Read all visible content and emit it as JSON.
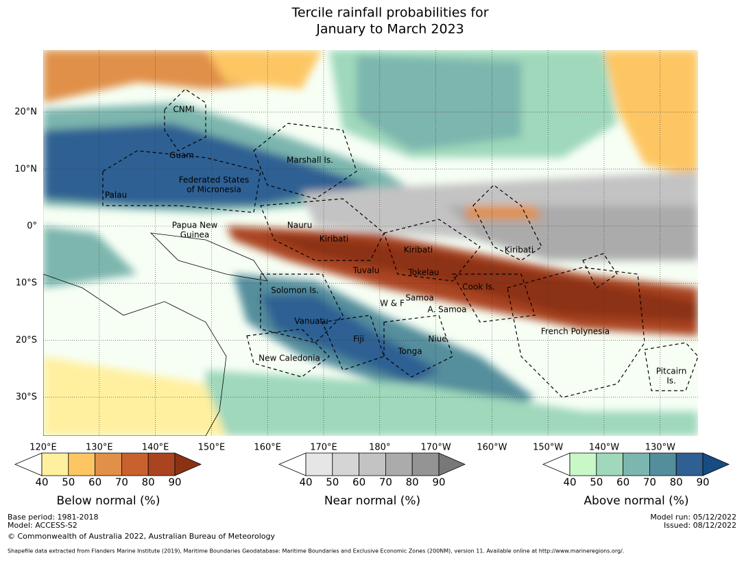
{
  "title": [
    "Tercile rainfall probabilities for",
    "January to March 2023"
  ],
  "map": {
    "lat_ticks": [
      {
        "value": 20,
        "label": "20°N"
      },
      {
        "value": 10,
        "label": "10°N"
      },
      {
        "value": 0,
        "label": "0°"
      },
      {
        "value": -10,
        "label": "10°S"
      },
      {
        "value": -20,
        "label": "20°S"
      },
      {
        "value": -30,
        "label": "30°S"
      }
    ],
    "lon_ticks": [
      {
        "value": 120,
        "label": "120°E"
      },
      {
        "value": 130,
        "label": "130°E"
      },
      {
        "value": 140,
        "label": "140°E"
      },
      {
        "value": 150,
        "label": "150°E"
      },
      {
        "value": 160,
        "label": "160°E"
      },
      {
        "value": 170,
        "label": "170°E"
      },
      {
        "value": 180,
        "label": "180°"
      },
      {
        "value": -170,
        "label": "170°W"
      },
      {
        "value": -160,
        "label": "160°W"
      },
      {
        "value": -150,
        "label": "150°W"
      },
      {
        "value": -140,
        "label": "140°W"
      },
      {
        "value": -130,
        "label": "130°W"
      }
    ],
    "regions": [
      [
        "CNMI"
      ],
      [
        "Guam"
      ],
      [
        "Marshall Is."
      ],
      [
        "Federated States",
        "of Micronesia"
      ],
      [
        "Palau"
      ],
      [
        "Papua New",
        "Guinea"
      ],
      [
        "Nauru"
      ],
      [
        "Kiribati"
      ],
      [
        "Kiribati"
      ],
      [
        "Kiribati"
      ],
      [
        "Tuvalu"
      ],
      [
        "Tokelau"
      ],
      [
        "Solomon Is."
      ],
      [
        "Cook Is."
      ],
      [
        "W & F"
      ],
      [
        "Samoa"
      ],
      [
        "A. Samoa"
      ],
      [
        "Vanuatu"
      ],
      [
        "French Polynesia"
      ],
      [
        "Fiji"
      ],
      [
        "Niue"
      ],
      [
        "Tonga"
      ],
      [
        "New Caledonia"
      ],
      [
        "Pitcairn",
        "Is."
      ]
    ]
  },
  "colorbars": [
    {
      "label": "Below normal (%)",
      "ticks": [
        40,
        50,
        60,
        70,
        80,
        90
      ],
      "colors": [
        "#fff0a0",
        "#fdc663",
        "#e09048",
        "#c9612f",
        "#aa4420"
      ],
      "over_color": "#8c3214"
    },
    {
      "label": "Near normal (%)",
      "ticks": [
        40,
        50,
        60,
        70,
        80,
        90
      ],
      "colors": [
        "#e6e6e6",
        "#d5d5d5",
        "#c3c3c3",
        "#ababab",
        "#949494"
      ],
      "over_color": "#787878"
    },
    {
      "label": "Above normal (%)",
      "ticks": [
        40,
        50,
        60,
        70,
        80,
        90
      ],
      "colors": [
        "#c8f8c8",
        "#9fd8bb",
        "#7cb6ae",
        "#548e9c",
        "#2f6093"
      ],
      "over_color": "#174b82"
    }
  ],
  "footer": {
    "left": [
      "Base period: 1981-2018",
      "Model: ACCESS-S2",
      "© Commonwealth of Australia 2022, Australian Bureau of Meteorology"
    ],
    "right": [
      "Model run: 05/12/2022",
      "Issued: 08/12/2022"
    ],
    "source": "Shapefile data extracted from Flanders Marine Institute (2019), Maritime Boundaries Geodatabase: Maritime Boundaries and Exclusive Economic Zones (200NM), version 11. Available online at http://www.marineregions.org/."
  }
}
